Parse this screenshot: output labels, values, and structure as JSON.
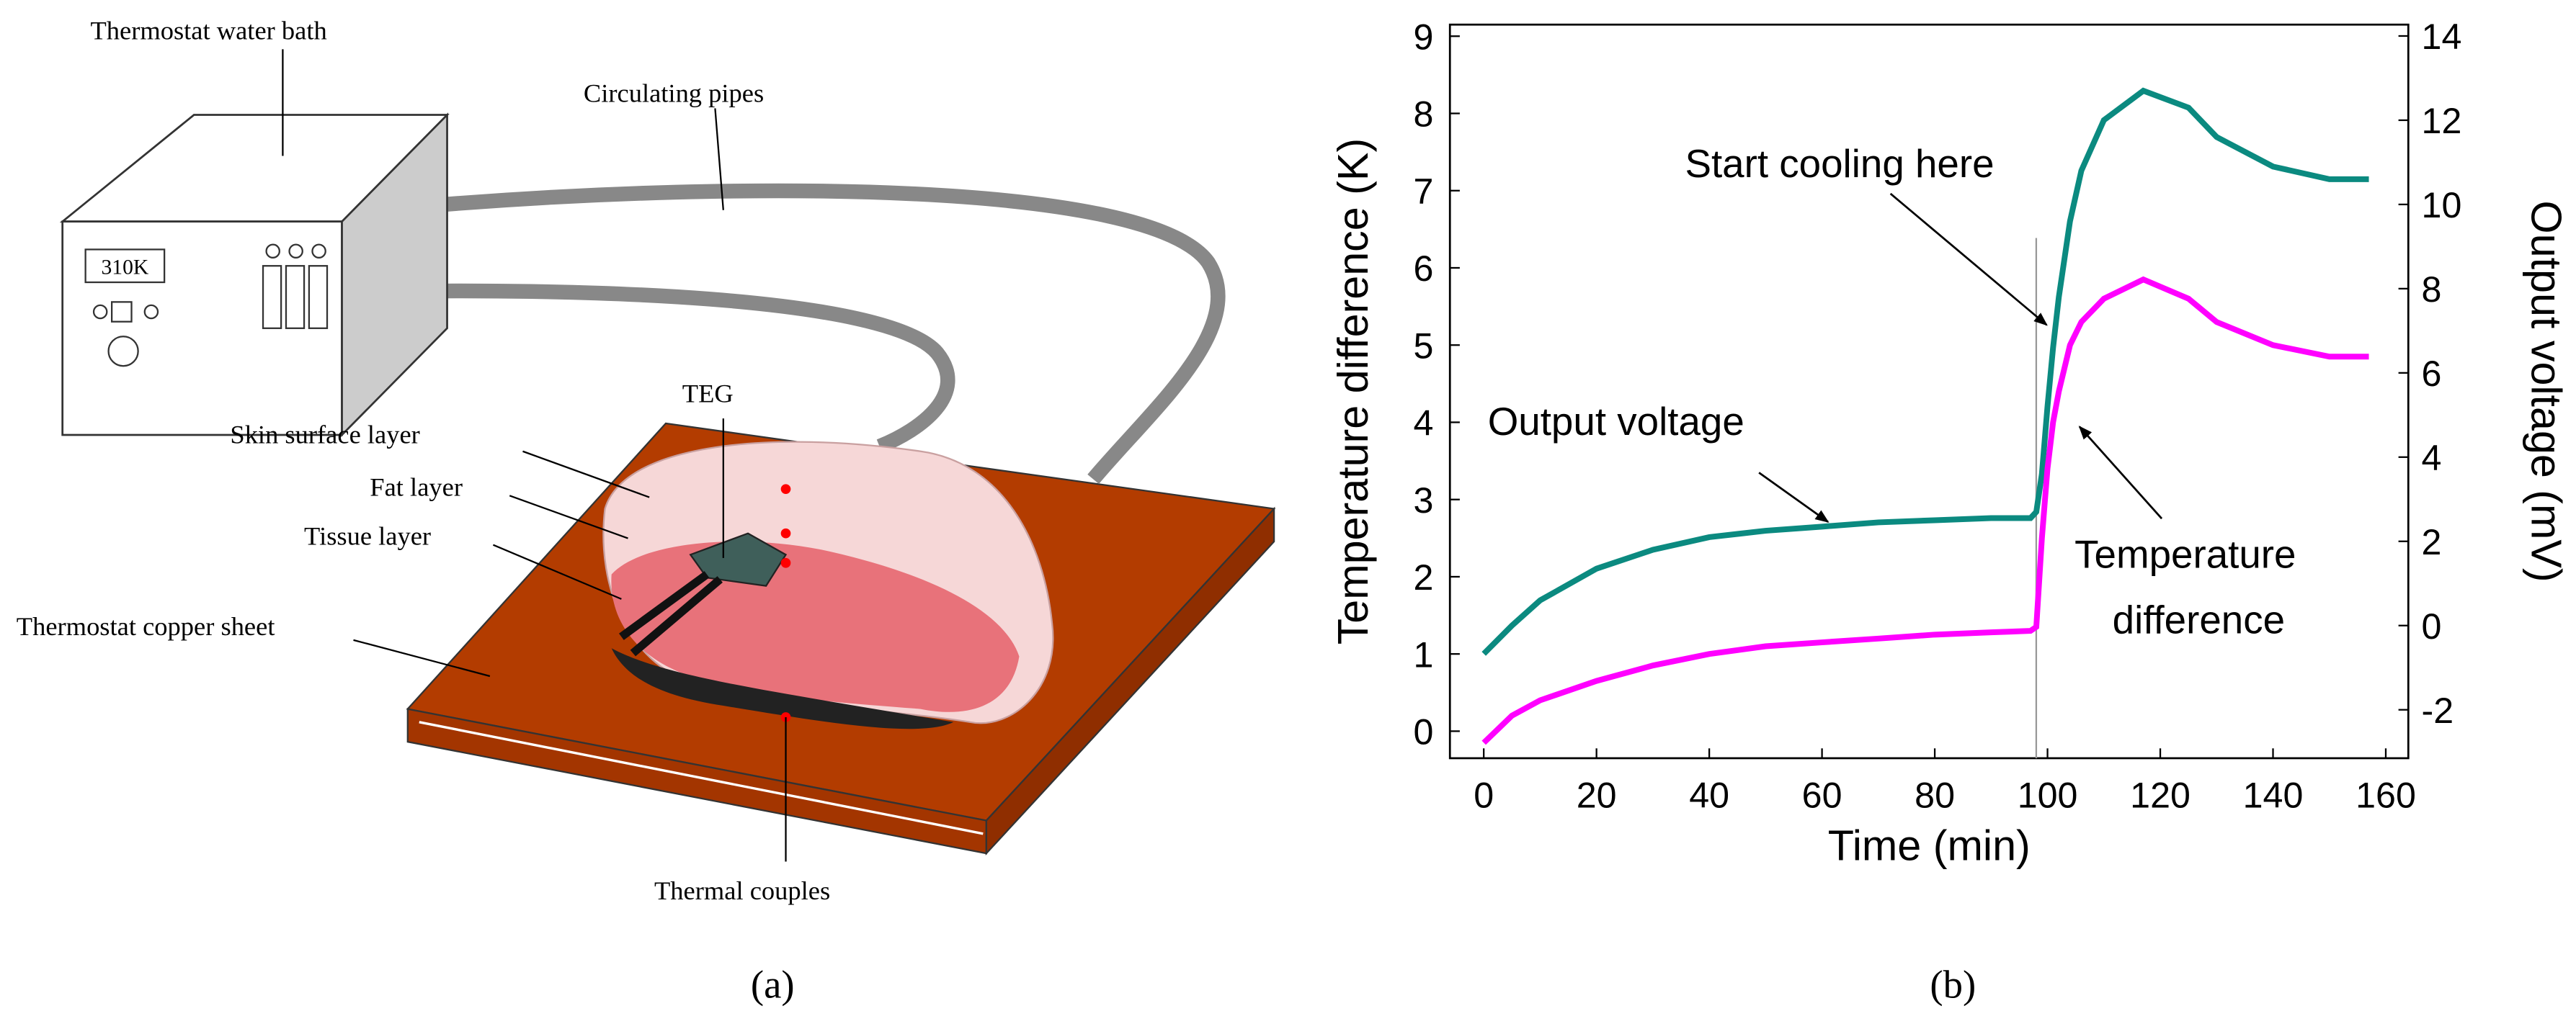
{
  "diagram": {
    "labels": [
      "Thermostat water bath",
      "Circulating pipes",
      "TEG",
      "Skin surface layer",
      "Fat layer",
      "Tissue layer",
      "Thermostat copper sheet",
      "Thermal couples"
    ],
    "display": "310K",
    "caption": "(a)"
  },
  "chart_data": {
    "type": "line",
    "caption": "(b)",
    "xlabel": "Time (min)",
    "ylabel": "Temperature difference (K)",
    "y2label": "Output voltage (mV)",
    "annotations": [
      "Start cooling here",
      "Output voltage",
      "Temperature",
      "difference"
    ],
    "cooling_start": 98,
    "x": [
      0,
      5,
      10,
      20,
      30,
      40,
      50,
      60,
      70,
      80,
      90,
      97,
      98,
      99,
      100,
      101,
      102,
      104,
      106,
      110,
      117,
      125,
      130,
      140,
      150,
      157
    ],
    "series": [
      {
        "name": "Output voltage",
        "color": "#0b8a80",
        "axis": "y2",
        "values": [
          -0.67,
          0.0,
          0.6,
          1.35,
          1.8,
          2.1,
          2.25,
          2.35,
          2.45,
          2.5,
          2.55,
          2.55,
          2.7,
          3.6,
          5.2,
          6.6,
          7.8,
          9.6,
          10.8,
          12.0,
          12.7,
          12.3,
          11.6,
          10.9,
          10.6,
          10.6
        ]
      },
      {
        "name": "Temperature difference",
        "color": "#ff00ff",
        "values": [
          -0.15,
          0.2,
          0.4,
          0.65,
          0.85,
          1.0,
          1.1,
          1.15,
          1.2,
          1.25,
          1.28,
          1.3,
          1.35,
          2.5,
          3.4,
          4.0,
          4.4,
          5.0,
          5.3,
          5.6,
          5.85,
          5.6,
          5.3,
          5.0,
          4.85,
          4.85
        ]
      }
    ],
    "xlim": [
      -6,
      164
    ],
    "xticks": [
      0,
      20,
      40,
      60,
      80,
      100,
      120,
      140,
      160
    ],
    "ylim": [
      -0.35,
      9.15
    ],
    "yticks": [
      0,
      1,
      2,
      3,
      4,
      5,
      6,
      7,
      8,
      9
    ],
    "y2lim": [
      -3.15,
      14.27
    ],
    "y2ticks": [
      -2,
      0,
      2,
      4,
      6,
      8,
      10,
      12,
      14
    ]
  }
}
